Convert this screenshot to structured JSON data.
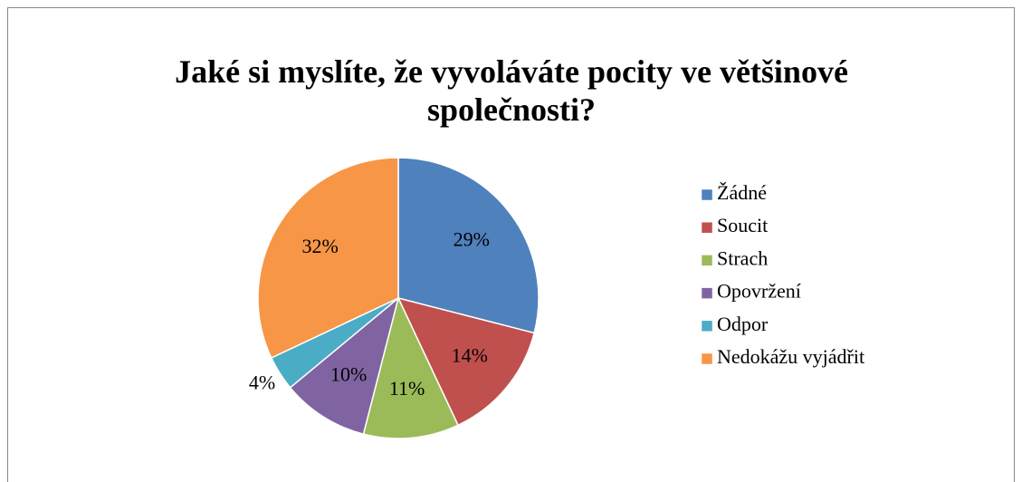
{
  "chart_data": {
    "type": "pie",
    "title": "Jaké si myslíte, že vyvoláváte pocity ve většinové společnosti?",
    "categories": [
      "Žádné",
      "Soucit",
      "Strach",
      "Opovržení",
      "Odpor",
      "Nedokážu vyjádřit"
    ],
    "values": [
      29,
      14,
      11,
      10,
      4,
      32
    ],
    "value_labels": [
      "29%",
      "14%",
      "11%",
      "10%",
      "4%",
      "32%"
    ],
    "colors": [
      "#4f81bd",
      "#c0504d",
      "#9bbb59",
      "#8064a2",
      "#4bacc6",
      "#f79646"
    ],
    "legend": "right"
  }
}
